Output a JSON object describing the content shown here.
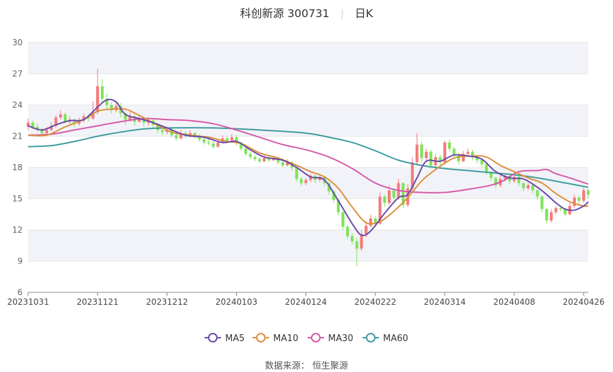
{
  "title": {
    "name": "科创新源 300731",
    "period": "日K"
  },
  "source": "数据来源： 恒生聚源",
  "colors": {
    "up": "#f47b7b",
    "down": "#7ee35a",
    "MA5": "#6a4aa8",
    "MA10": "#de8f3a",
    "MA30": "#d65aa8",
    "MA60": "#3f9b9e",
    "band": "#f2f3f8",
    "grid": "#e6e6e6",
    "axis": "#888888"
  },
  "chart_data": {
    "type": "candlestick",
    "ylim": [
      6,
      30
    ],
    "yticks": [
      6,
      9,
      12,
      15,
      18,
      21,
      24,
      27,
      30
    ],
    "x_tick_labels": [
      "20231031",
      "20231121",
      "20231212",
      "20240103",
      "20240124",
      "20240222",
      "20240314",
      "20240408",
      "20240426"
    ],
    "x_tick_index": [
      0,
      15,
      30,
      45,
      60,
      75,
      90,
      105,
      120
    ],
    "legend": [
      "MA5",
      "MA10",
      "MA30",
      "MA60"
    ],
    "candles": [
      [
        21.9,
        22.3,
        22.7,
        21.6
      ],
      [
        22.3,
        21.9,
        22.5,
        21.7
      ],
      [
        21.9,
        21.6,
        22.2,
        21.4
      ],
      [
        21.6,
        21.3,
        21.8,
        21.1
      ],
      [
        21.3,
        21.6,
        21.9,
        21.2
      ],
      [
        21.6,
        22.0,
        22.4,
        21.5
      ],
      [
        22.0,
        22.8,
        23.0,
        21.8
      ],
      [
        22.8,
        23.1,
        23.5,
        22.6
      ],
      [
        23.1,
        22.4,
        23.3,
        22.2
      ],
      [
        22.4,
        22.6,
        22.9,
        22.1
      ],
      [
        22.6,
        22.2,
        22.7,
        21.9
      ],
      [
        22.2,
        22.5,
        22.8,
        22.0
      ],
      [
        22.5,
        22.9,
        23.2,
        22.3
      ],
      [
        22.9,
        22.7,
        23.1,
        22.4
      ],
      [
        22.7,
        23.3,
        24.4,
        22.6
      ],
      [
        23.3,
        25.8,
        27.5,
        23.1
      ],
      [
        25.8,
        24.6,
        26.5,
        24.2
      ],
      [
        24.6,
        24.0,
        25.1,
        23.6
      ],
      [
        24.0,
        23.5,
        24.3,
        23.2
      ],
      [
        23.5,
        23.9,
        24.3,
        23.3
      ],
      [
        23.9,
        23.2,
        24.2,
        22.8
      ],
      [
        23.2,
        22.6,
        23.4,
        22.1
      ],
      [
        22.6,
        22.9,
        23.3,
        22.4
      ],
      [
        22.9,
        22.4,
        23.1,
        22.0
      ],
      [
        22.4,
        22.7,
        23.0,
        22.3
      ],
      [
        22.7,
        22.3,
        22.9,
        21.9
      ],
      [
        22.3,
        22.5,
        22.8,
        22.0
      ],
      [
        22.5,
        22.1,
        22.6,
        21.8
      ],
      [
        22.1,
        21.6,
        22.3,
        21.3
      ],
      [
        21.6,
        21.4,
        21.9,
        21.1
      ],
      [
        21.4,
        21.6,
        21.9,
        21.2
      ],
      [
        21.6,
        21.1,
        21.8,
        20.9
      ],
      [
        21.1,
        20.8,
        21.3,
        20.6
      ],
      [
        20.8,
        21.3,
        21.6,
        20.7
      ],
      [
        21.3,
        21.0,
        21.5,
        20.8
      ],
      [
        21.0,
        21.3,
        21.6,
        20.9
      ],
      [
        21.3,
        21.0,
        21.4,
        20.8
      ],
      [
        21.0,
        20.7,
        21.2,
        20.5
      ],
      [
        20.7,
        20.4,
        20.9,
        20.2
      ],
      [
        20.4,
        20.3,
        20.7,
        20.1
      ],
      [
        20.3,
        20.0,
        20.5,
        19.8
      ],
      [
        20.0,
        20.4,
        20.6,
        19.9
      ],
      [
        20.4,
        20.8,
        21.1,
        20.3
      ],
      [
        20.8,
        20.6,
        21.0,
        20.4
      ],
      [
        20.6,
        20.9,
        21.2,
        20.5
      ],
      [
        20.9,
        20.4,
        21.1,
        20.1
      ],
      [
        20.4,
        19.8,
        20.5,
        19.6
      ],
      [
        19.8,
        19.3,
        20.0,
        19.1
      ],
      [
        19.3,
        19.0,
        19.5,
        18.8
      ],
      [
        19.0,
        18.8,
        19.2,
        18.6
      ],
      [
        18.8,
        18.6,
        19.0,
        18.4
      ],
      [
        18.6,
        18.9,
        19.2,
        18.5
      ],
      [
        18.9,
        18.7,
        19.1,
        18.5
      ],
      [
        18.7,
        18.9,
        19.1,
        18.6
      ],
      [
        18.9,
        18.5,
        19.0,
        18.3
      ],
      [
        18.5,
        18.2,
        18.7,
        18.0
      ],
      [
        18.2,
        18.5,
        18.8,
        18.1
      ],
      [
        18.5,
        18.0,
        18.6,
        17.7
      ],
      [
        18.0,
        16.9,
        18.1,
        16.6
      ],
      [
        16.9,
        16.5,
        17.1,
        16.2
      ],
      [
        16.5,
        16.8,
        17.0,
        16.3
      ],
      [
        16.8,
        17.2,
        17.4,
        16.6
      ],
      [
        17.2,
        16.8,
        17.3,
        16.5
      ],
      [
        16.8,
        17.1,
        17.3,
        16.6
      ],
      [
        17.1,
        16.5,
        17.2,
        16.2
      ],
      [
        16.5,
        15.7,
        16.6,
        15.4
      ],
      [
        15.7,
        14.9,
        15.8,
        14.6
      ],
      [
        14.9,
        13.7,
        15.0,
        13.4
      ],
      [
        13.7,
        12.3,
        13.8,
        12.0
      ],
      [
        12.3,
        11.4,
        12.5,
        11.1
      ],
      [
        11.4,
        10.9,
        11.7,
        10.6
      ],
      [
        10.9,
        10.2,
        11.2,
        8.5
      ],
      [
        10.2,
        11.6,
        12.0,
        10.0
      ],
      [
        11.6,
        12.4,
        12.8,
        11.3
      ],
      [
        12.4,
        13.1,
        13.5,
        12.2
      ],
      [
        13.1,
        12.6,
        13.3,
        12.3
      ],
      [
        12.6,
        15.2,
        15.6,
        12.5
      ],
      [
        15.2,
        14.6,
        15.4,
        14.2
      ],
      [
        14.6,
        15.8,
        16.3,
        14.4
      ],
      [
        15.8,
        15.1,
        16.0,
        14.8
      ],
      [
        15.1,
        16.5,
        16.9,
        14.9
      ],
      [
        16.5,
        14.4,
        16.6,
        14.1
      ],
      [
        14.4,
        16.0,
        16.4,
        14.2
      ],
      [
        16.0,
        18.5,
        19.0,
        15.8
      ],
      [
        18.5,
        20.2,
        21.3,
        18.2
      ],
      [
        20.2,
        18.9,
        20.5,
        18.4
      ],
      [
        18.9,
        19.5,
        19.8,
        18.6
      ],
      [
        19.5,
        18.2,
        19.7,
        17.9
      ],
      [
        18.2,
        19.0,
        19.3,
        17.9
      ],
      [
        19.0,
        18.5,
        19.2,
        18.1
      ],
      [
        18.5,
        20.4,
        20.6,
        18.3
      ],
      [
        20.4,
        19.8,
        20.7,
        19.5
      ],
      [
        19.8,
        19.2,
        20.0,
        18.9
      ],
      [
        19.2,
        18.6,
        19.4,
        18.3
      ],
      [
        18.6,
        19.3,
        19.6,
        18.5
      ],
      [
        19.3,
        19.5,
        19.8,
        19.0
      ],
      [
        19.5,
        19.0,
        19.7,
        18.7
      ],
      [
        19.0,
        18.7,
        19.2,
        18.4
      ],
      [
        18.7,
        18.3,
        18.9,
        18.0
      ],
      [
        18.3,
        17.6,
        18.4,
        17.3
      ],
      [
        17.6,
        17.0,
        17.7,
        16.7
      ],
      [
        17.0,
        16.3,
        17.1,
        16.0
      ],
      [
        16.3,
        16.9,
        17.2,
        16.1
      ],
      [
        16.9,
        17.2,
        17.4,
        16.7
      ],
      [
        17.2,
        16.7,
        17.3,
        16.4
      ],
      [
        16.7,
        17.1,
        17.4,
        16.5
      ],
      [
        17.1,
        16.5,
        17.2,
        16.2
      ],
      [
        16.5,
        16.0,
        16.6,
        15.7
      ],
      [
        16.0,
        16.3,
        16.5,
        15.8
      ],
      [
        16.3,
        15.8,
        16.4,
        15.5
      ],
      [
        15.8,
        15.2,
        15.9,
        14.9
      ],
      [
        15.2,
        14.0,
        15.3,
        13.7
      ],
      [
        14.0,
        12.9,
        14.1,
        12.6
      ],
      [
        12.9,
        13.7,
        14.0,
        12.7
      ],
      [
        13.7,
        14.1,
        14.3,
        13.5
      ],
      [
        14.1,
        14.0,
        14.3,
        13.8
      ],
      [
        14.0,
        13.5,
        14.1,
        13.3
      ],
      [
        13.5,
        14.3,
        14.6,
        13.4
      ],
      [
        14.3,
        15.1,
        15.4,
        14.1
      ],
      [
        15.1,
        14.8,
        15.3,
        14.5
      ],
      [
        14.8,
        15.8,
        16.1,
        14.6
      ],
      [
        15.8,
        15.4,
        16.0,
        15.0
      ]
    ],
    "ma_anchors": {
      "MA5": [
        [
          0,
          22.0
        ],
        [
          3,
          21.6
        ],
        [
          6,
          22.1
        ],
        [
          9,
          22.5
        ],
        [
          12,
          22.6
        ],
        [
          15,
          23.8
        ],
        [
          17,
          24.5
        ],
        [
          19,
          24.3
        ],
        [
          21,
          23.1
        ],
        [
          24,
          22.7
        ],
        [
          27,
          22.3
        ],
        [
          30,
          21.8
        ],
        [
          34,
          21.1
        ],
        [
          38,
          20.9
        ],
        [
          42,
          20.4
        ],
        [
          45,
          20.5
        ],
        [
          48,
          19.7
        ],
        [
          51,
          19.0
        ],
        [
          55,
          18.7
        ],
        [
          58,
          18.0
        ],
        [
          61,
          17.1
        ],
        [
          64,
          16.8
        ],
        [
          67,
          14.8
        ],
        [
          70,
          12.6
        ],
        [
          72,
          11.5
        ],
        [
          74,
          11.9
        ],
        [
          77,
          13.6
        ],
        [
          80,
          15.1
        ],
        [
          82,
          15.4
        ],
        [
          84,
          17.0
        ],
        [
          86,
          18.6
        ],
        [
          89,
          18.6
        ],
        [
          92,
          19.2
        ],
        [
          95,
          19.1
        ],
        [
          98,
          18.8
        ],
        [
          101,
          17.6
        ],
        [
          104,
          17.0
        ],
        [
          107,
          16.9
        ],
        [
          110,
          16.1
        ],
        [
          112,
          15.4
        ],
        [
          114,
          14.6
        ],
        [
          116,
          14.0
        ],
        [
          118,
          13.9
        ],
        [
          120,
          14.3
        ],
        [
          121,
          14.7
        ]
      ],
      "MA10": [
        [
          0,
          21.1
        ],
        [
          4,
          21.1
        ],
        [
          8,
          21.9
        ],
        [
          12,
          22.6
        ],
        [
          15,
          23.4
        ],
        [
          18,
          23.6
        ],
        [
          21,
          23.6
        ],
        [
          24,
          23.0
        ],
        [
          27,
          22.3
        ],
        [
          31,
          21.4
        ],
        [
          35,
          21.1
        ],
        [
          39,
          20.9
        ],
        [
          43,
          20.5
        ],
        [
          46,
          20.3
        ],
        [
          50,
          19.4
        ],
        [
          54,
          18.9
        ],
        [
          58,
          18.2
        ],
        [
          61,
          17.6
        ],
        [
          64,
          17.1
        ],
        [
          67,
          16.0
        ],
        [
          70,
          14.2
        ],
        [
          73,
          12.7
        ],
        [
          76,
          12.8
        ],
        [
          79,
          13.8
        ],
        [
          82,
          15.1
        ],
        [
          85,
          16.7
        ],
        [
          88,
          17.8
        ],
        [
          92,
          18.9
        ],
        [
          96,
          19.1
        ],
        [
          99,
          19.0
        ],
        [
          102,
          18.2
        ],
        [
          105,
          17.6
        ],
        [
          108,
          17.0
        ],
        [
          111,
          16.5
        ],
        [
          114,
          15.5
        ],
        [
          117,
          14.7
        ],
        [
          120,
          14.3
        ],
        [
          121,
          14.3
        ]
      ],
      "MA30": [
        [
          0,
          21.1
        ],
        [
          5,
          21.2
        ],
        [
          10,
          21.6
        ],
        [
          15,
          22.0
        ],
        [
          20,
          22.4
        ],
        [
          25,
          22.7
        ],
        [
          30,
          22.6
        ],
        [
          35,
          22.5
        ],
        [
          40,
          22.2
        ],
        [
          45,
          21.6
        ],
        [
          50,
          20.9
        ],
        [
          55,
          20.2
        ],
        [
          60,
          19.7
        ],
        [
          65,
          19.0
        ],
        [
          70,
          17.9
        ],
        [
          75,
          16.5
        ],
        [
          80,
          15.8
        ],
        [
          85,
          15.6
        ],
        [
          90,
          15.6
        ],
        [
          95,
          15.9
        ],
        [
          100,
          16.3
        ],
        [
          103,
          16.8
        ],
        [
          106,
          17.6
        ],
        [
          110,
          17.7
        ],
        [
          112,
          17.8
        ],
        [
          114,
          17.4
        ],
        [
          117,
          17.0
        ],
        [
          121,
          16.4
        ]
      ],
      "MA60": [
        [
          0,
          20.0
        ],
        [
          5,
          20.1
        ],
        [
          10,
          20.5
        ],
        [
          15,
          21.0
        ],
        [
          20,
          21.4
        ],
        [
          25,
          21.7
        ],
        [
          30,
          21.8
        ],
        [
          40,
          21.8
        ],
        [
          50,
          21.6
        ],
        [
          60,
          21.3
        ],
        [
          65,
          20.9
        ],
        [
          70,
          20.4
        ],
        [
          75,
          19.6
        ],
        [
          80,
          18.7
        ],
        [
          85,
          18.2
        ],
        [
          90,
          17.9
        ],
        [
          95,
          17.7
        ],
        [
          100,
          17.5
        ],
        [
          105,
          17.3
        ],
        [
          110,
          17.0
        ],
        [
          115,
          16.6
        ],
        [
          121,
          16.1
        ]
      ]
    }
  }
}
